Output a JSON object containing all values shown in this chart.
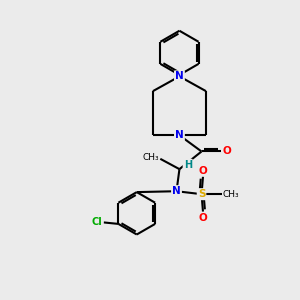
{
  "background_color": "#ebebeb",
  "bond_color": "#000000",
  "atom_colors": {
    "N": "#0000ee",
    "O": "#ff0000",
    "S": "#ddaa00",
    "Cl": "#00aa00",
    "H": "#008888",
    "C": "#000000"
  }
}
